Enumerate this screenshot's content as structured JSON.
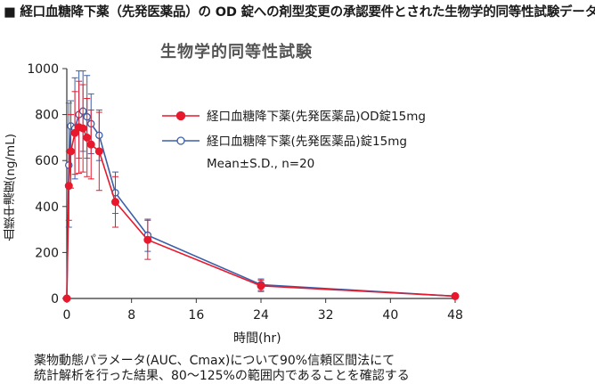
{
  "heading": "■ 経口血糖降下薬（先発医薬品）の OD 錠への剤型変更の承認要件とされた生物学的同等性試験データ",
  "chart_data": {
    "type": "line",
    "title": "生物学的同等性試験",
    "xlabel": "時間(hr)",
    "ylabel": "血漿中濃度(ng/mL)",
    "xlim": [
      0,
      48
    ],
    "ylim": [
      0,
      1000
    ],
    "x_ticks": [
      0,
      8,
      16,
      24,
      32,
      40,
      48
    ],
    "y_ticks": [
      0,
      200,
      400,
      600,
      800,
      1000
    ],
    "legend_position": "top-right",
    "legend_note": "Mean±S.D., n=20",
    "series": [
      {
        "name": "経口血糖降下薬(先発医薬品)OD錠15mg",
        "color": "#e8192c",
        "marker": "filled-circle",
        "x": [
          0,
          0.25,
          0.5,
          1,
          1.5,
          2,
          2.5,
          3,
          4,
          6,
          10,
          24,
          48
        ],
        "y": [
          0,
          490,
          640,
          720,
          745,
          740,
          700,
          670,
          640,
          420,
          255,
          55,
          10
        ],
        "sd": [
          0,
          150,
          160,
          180,
          200,
          190,
          170,
          150,
          170,
          110,
          85,
          25,
          0
        ]
      },
      {
        "name": "経口血糖降下薬(先発医薬品)錠15mg",
        "color": "#3c5fa8",
        "marker": "open-circle",
        "x": [
          0,
          0.25,
          0.5,
          1,
          1.5,
          2,
          2.5,
          3,
          4,
          6,
          10,
          24,
          48
        ],
        "y": [
          0,
          580,
          750,
          740,
          800,
          815,
          790,
          760,
          710,
          460,
          275,
          60,
          10
        ],
        "sd": [
          0,
          270,
          110,
          220,
          190,
          175,
          180,
          130,
          110,
          90,
          70,
          25,
          0
        ]
      }
    ]
  },
  "footnote": {
    "line1": "薬物動態パラメータ(AUC、Cmax)について90%信頼区間法にて",
    "line2": "統計解析を行った結果、80〜125%の範囲内であることを確認する"
  }
}
